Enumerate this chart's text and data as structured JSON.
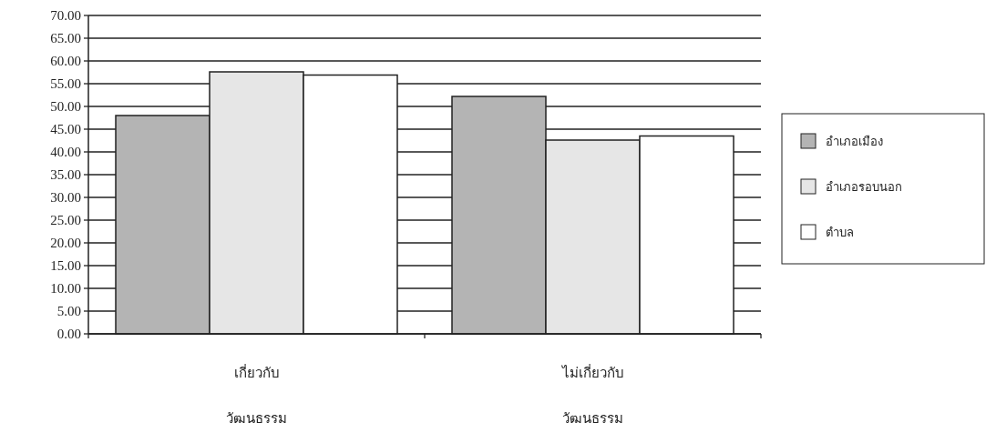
{
  "chart_data": {
    "type": "bar",
    "categories": [
      "เกี่ยวกับ\nวัฒนธรรม",
      "ไม่เกี่ยวกับ\nวัฒนธรรม"
    ],
    "series": [
      {
        "name": "อำเภอเมือง",
        "color": "#b4b4b4",
        "values": [
          48.0,
          52.2
        ]
      },
      {
        "name": "อำเภอรอบนอก",
        "color": "#e6e6e6",
        "values": [
          57.6,
          42.6
        ]
      },
      {
        "name": "ตำบล",
        "color": "#ffffff",
        "values": [
          56.9,
          43.5
        ]
      }
    ],
    "ylim": [
      0,
      70
    ],
    "yticks": [
      {
        "value": 0,
        "label": "0.00"
      },
      {
        "value": 5,
        "label": "5.00"
      },
      {
        "value": 10,
        "label": "10.00"
      },
      {
        "value": 15,
        "label": "15.00"
      },
      {
        "value": 20,
        "label": "20.00"
      },
      {
        "value": 25,
        "label": "25.00"
      },
      {
        "value": 30,
        "label": "30.00"
      },
      {
        "value": 35,
        "label": "35.00"
      },
      {
        "value": 40,
        "label": "40.00"
      },
      {
        "value": 45,
        "label": "45.00"
      },
      {
        "value": 50,
        "label": "50.00"
      },
      {
        "value": 55,
        "label": "55.00"
      },
      {
        "value": 60,
        "label": "60.00"
      },
      {
        "value": 65,
        "label": "65.00"
      },
      {
        "value": 70,
        "label": "70.00"
      }
    ],
    "grid": "y",
    "legend": "right"
  }
}
